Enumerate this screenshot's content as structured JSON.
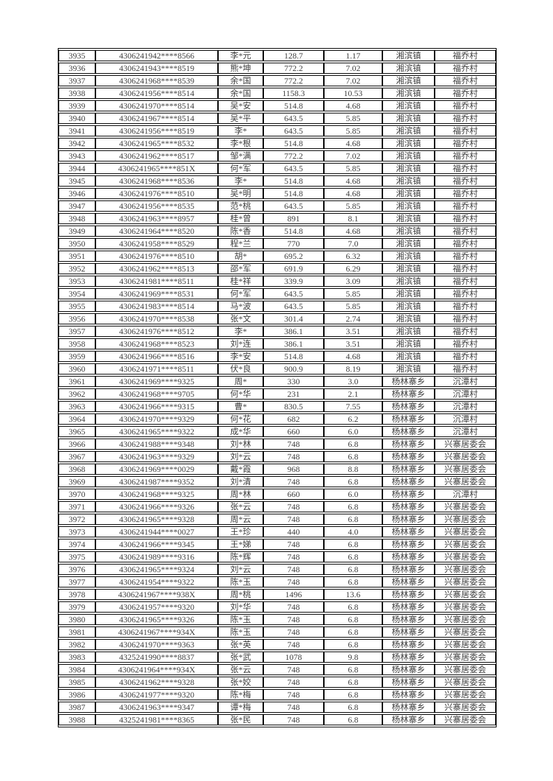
{
  "colors": {
    "page_background": "#ffffff",
    "table_border": "#000000",
    "text": "#3f3f3f"
  },
  "table": {
    "rows": [
      [
        "3935",
        "4306241942****8566",
        "李*元",
        "128.7",
        "1.17",
        "湘滨镇",
        "福乔村"
      ],
      [
        "3936",
        "4306241943****8519",
        "熊*坤",
        "772.2",
        "7.02",
        "湘滨镇",
        "福乔村"
      ],
      [
        "3937",
        "4306241968****8539",
        "余*国",
        "772.2",
        "7.02",
        "湘滨镇",
        "福乔村"
      ],
      [
        "3938",
        "4306241956****8514",
        "余*国",
        "1158.3",
        "10.53",
        "湘滨镇",
        "福乔村"
      ],
      [
        "3939",
        "4306241970****8514",
        "吴*安",
        "514.8",
        "4.68",
        "湘滨镇",
        "福乔村"
      ],
      [
        "3940",
        "4306241967****8514",
        "吴*平",
        "643.5",
        "5.85",
        "湘滨镇",
        "福乔村"
      ],
      [
        "3941",
        "4306241956****8519",
        "李*",
        "643.5",
        "5.85",
        "湘滨镇",
        "福乔村"
      ],
      [
        "3942",
        "4306241965****8532",
        "李*根",
        "514.8",
        "4.68",
        "湘滨镇",
        "福乔村"
      ],
      [
        "3943",
        "4306241962****8517",
        "邹*满",
        "772.2",
        "7.02",
        "湘滨镇",
        "福乔村"
      ],
      [
        "3944",
        "4306241965****851X",
        "何*军",
        "643.5",
        "5.85",
        "湘滨镇",
        "福乔村"
      ],
      [
        "3945",
        "4306241968****8536",
        "李*",
        "514.8",
        "4.68",
        "湘滨镇",
        "福乔村"
      ],
      [
        "3946",
        "4306241976****8510",
        "吴*明",
        "514.8",
        "4.68",
        "湘滨镇",
        "福乔村"
      ],
      [
        "3947",
        "4306241956****8535",
        "范*桃",
        "643.5",
        "5.85",
        "湘滨镇",
        "福乔村"
      ],
      [
        "3948",
        "4306241963****8957",
        "桂*曾",
        "891",
        "8.1",
        "湘滨镇",
        "福乔村"
      ],
      [
        "3949",
        "4306241964****8520",
        "陈*香",
        "514.8",
        "4.68",
        "湘滨镇",
        "福乔村"
      ],
      [
        "3950",
        "4306241958****8529",
        "程*兰",
        "770",
        "7.0",
        "湘滨镇",
        "福乔村"
      ],
      [
        "3951",
        "4306241976****8510",
        "胡*",
        "695.2",
        "6.32",
        "湘滨镇",
        "福乔村"
      ],
      [
        "3952",
        "4306241962****8513",
        "邵*军",
        "691.9",
        "6.29",
        "湘滨镇",
        "福乔村"
      ],
      [
        "3953",
        "4306241981****8511",
        "桂*祥",
        "339.9",
        "3.09",
        "湘滨镇",
        "福乔村"
      ],
      [
        "3954",
        "4306241969****8531",
        "何*军",
        "643.5",
        "5.85",
        "湘滨镇",
        "福乔村"
      ],
      [
        "3955",
        "4306241983****8514",
        "马*波",
        "643.5",
        "5.85",
        "湘滨镇",
        "福乔村"
      ],
      [
        "3956",
        "4306241970****8538",
        "张*文",
        "301.4",
        "2.74",
        "湘滨镇",
        "福乔村"
      ],
      [
        "3957",
        "4306241976****8512",
        "李*",
        "386.1",
        "3.51",
        "湘滨镇",
        "福乔村"
      ],
      [
        "3958",
        "4306241968****8523",
        "刘*连",
        "386.1",
        "3.51",
        "湘滨镇",
        "福乔村"
      ],
      [
        "3959",
        "4306241966****8516",
        "李*安",
        "514.8",
        "4.68",
        "湘滨镇",
        "福乔村"
      ],
      [
        "3960",
        "4306241971****8511",
        "伏*良",
        "900.9",
        "8.19",
        "湘滨镇",
        "福乔村"
      ],
      [
        "3961",
        "4306241969****9325",
        "周*",
        "330",
        "3.0",
        "杨林寨乡",
        "沉潭村"
      ],
      [
        "3962",
        "4306241968****9705",
        "何*华",
        "231",
        "2.1",
        "杨林寨乡",
        "沉潭村"
      ],
      [
        "3963",
        "4306241966****9315",
        "曹*",
        "830.5",
        "7.55",
        "杨林寨乡",
        "沉潭村"
      ],
      [
        "3964",
        "4306241970****9329",
        "何*花",
        "682",
        "6.2",
        "杨林寨乡",
        "沉潭村"
      ],
      [
        "3965",
        "4306241965****9322",
        "成*华",
        "660",
        "6.0",
        "杨林寨乡",
        "沉潭村"
      ],
      [
        "3966",
        "4306241988****9348",
        "刘*林",
        "748",
        "6.8",
        "杨林寨乡",
        "兴寨居委会"
      ],
      [
        "3967",
        "4306241963****9329",
        "刘*云",
        "748",
        "6.8",
        "杨林寨乡",
        "兴寨居委会"
      ],
      [
        "3968",
        "4306241969****0029",
        "戴*霞",
        "968",
        "8.8",
        "杨林寨乡",
        "兴寨居委会"
      ],
      [
        "3969",
        "4306241987****9352",
        "刘*清",
        "748",
        "6.8",
        "杨林寨乡",
        "兴寨居委会"
      ],
      [
        "3970",
        "4306241968****9325",
        "周*林",
        "660",
        "6.0",
        "杨林寨乡",
        "沉潭村"
      ],
      [
        "3971",
        "4306241966****9326",
        "张*云",
        "748",
        "6.8",
        "杨林寨乡",
        "兴寨居委会"
      ],
      [
        "3972",
        "4306241965****9328",
        "周*云",
        "748",
        "6.8",
        "杨林寨乡",
        "兴寨居委会"
      ],
      [
        "3973",
        "4306241944****0027",
        "王*珍",
        "440",
        "4.0",
        "杨林寨乡",
        "兴寨居委会"
      ],
      [
        "3974",
        "4306241966****9345",
        "王*娣",
        "748",
        "6.8",
        "杨林寨乡",
        "兴寨居委会"
      ],
      [
        "3975",
        "4306241989****9316",
        "陈*辉",
        "748",
        "6.8",
        "杨林寨乡",
        "兴寨居委会"
      ],
      [
        "3976",
        "4306241965****9324",
        "刘*云",
        "748",
        "6.8",
        "杨林寨乡",
        "兴寨居委会"
      ],
      [
        "3977",
        "4306241954****9322",
        "陈*玉",
        "748",
        "6.8",
        "杨林寨乡",
        "兴寨居委会"
      ],
      [
        "3978",
        "4306241967****938X",
        "周*桃",
        "1496",
        "13.6",
        "杨林寨乡",
        "兴寨居委会"
      ],
      [
        "3979",
        "4306241957****9320",
        "刘*华",
        "748",
        "6.8",
        "杨林寨乡",
        "兴寨居委会"
      ],
      [
        "3980",
        "4306241965****9326",
        "陈*玉",
        "748",
        "6.8",
        "杨林寨乡",
        "兴寨居委会"
      ],
      [
        "3981",
        "4306241967****934X",
        "陈*玉",
        "748",
        "6.8",
        "杨林寨乡",
        "兴寨居委会"
      ],
      [
        "3982",
        "4306241970****9363",
        "张*英",
        "748",
        "6.8",
        "杨林寨乡",
        "兴寨居委会"
      ],
      [
        "3983",
        "4325241990****8837",
        "张*武",
        "1078",
        "9.8",
        "杨林寨乡",
        "兴寨居委会"
      ],
      [
        "3984",
        "4306241964****934X",
        "张*云",
        "748",
        "6.8",
        "杨林寨乡",
        "兴寨居委会"
      ],
      [
        "3985",
        "4306241962****9328",
        "张*姣",
        "748",
        "6.8",
        "杨林寨乡",
        "兴寨居委会"
      ],
      [
        "3986",
        "4306241977****9320",
        "陈*梅",
        "748",
        "6.8",
        "杨林寨乡",
        "兴寨居委会"
      ],
      [
        "3987",
        "4306241963****9347",
        "谭*梅",
        "748",
        "6.8",
        "杨林寨乡",
        "兴寨居委会"
      ],
      [
        "3988",
        "4325241981****8365",
        "张*民",
        "748",
        "6.8",
        "杨林寨乡",
        "兴寨居委会"
      ]
    ]
  }
}
